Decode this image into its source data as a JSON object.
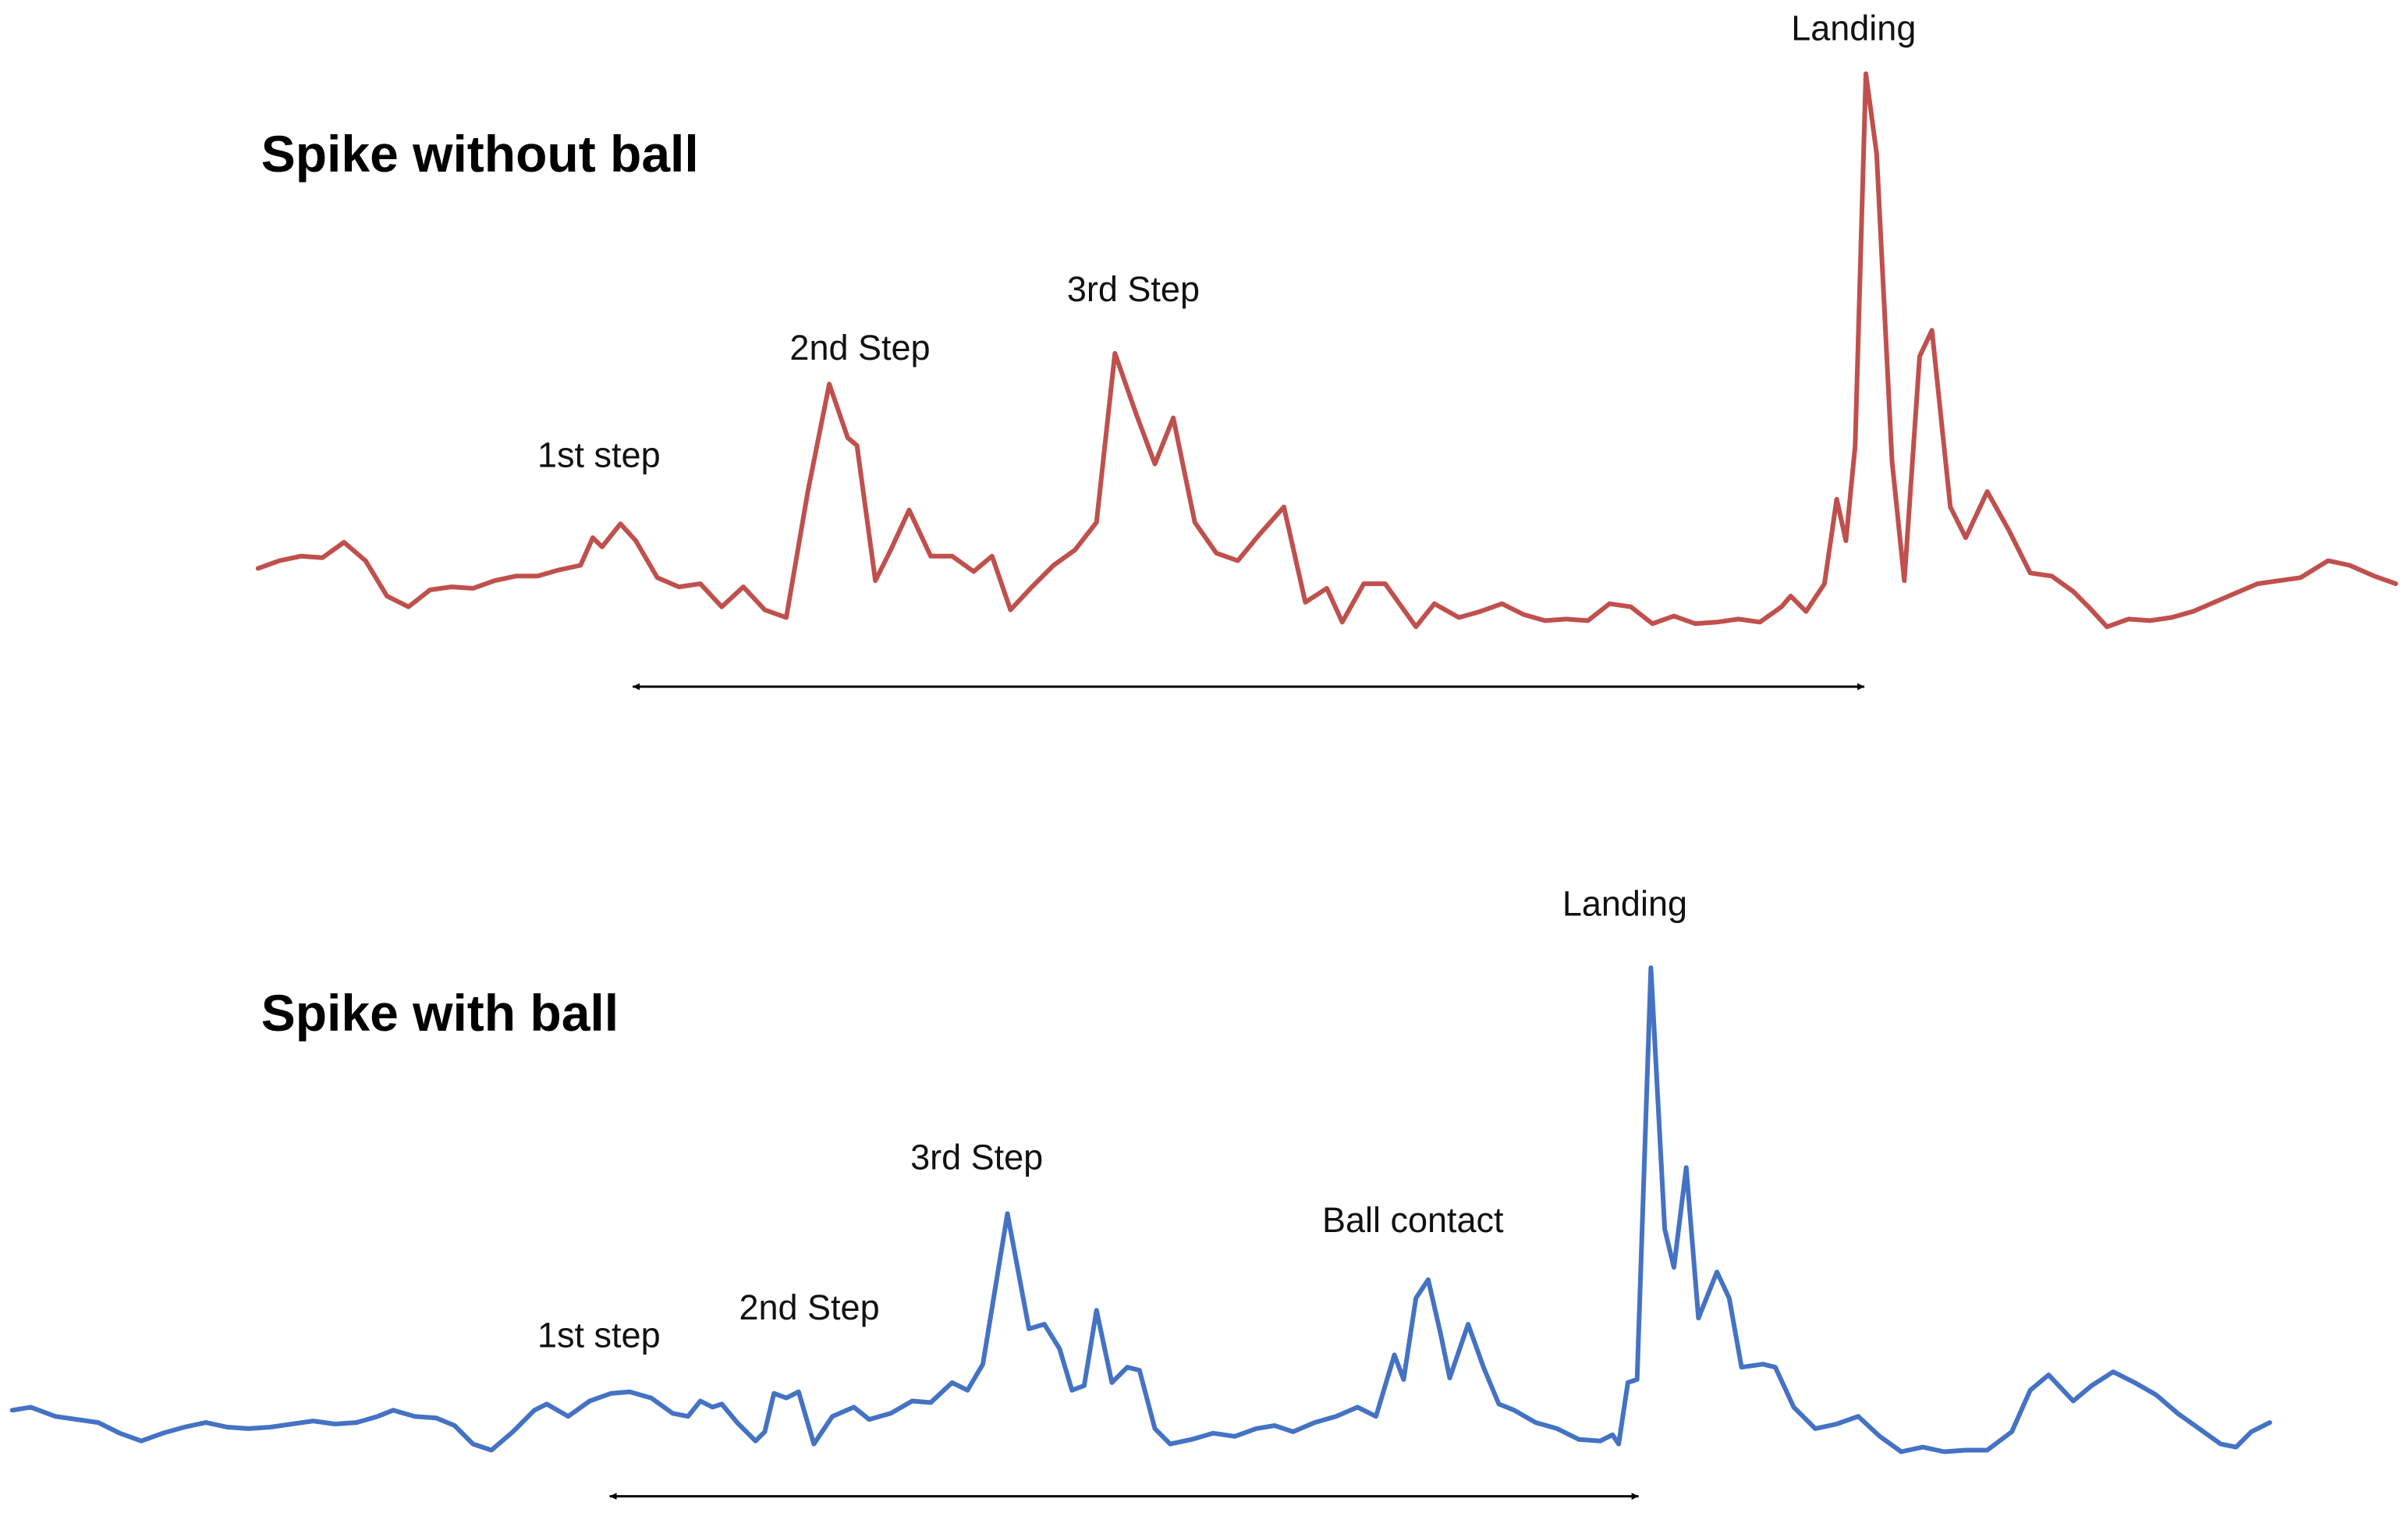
{
  "chart_data": [
    {
      "type": "line",
      "title": "Spike without ball",
      "annotations": [
        "1st step",
        "2nd Step",
        "3rd Step",
        "Landing"
      ],
      "color": "#c0504d",
      "xlim": [
        0,
        1392
      ],
      "ylim": [
        0,
        400
      ],
      "x": [
        0,
        14,
        28,
        42,
        56,
        70,
        84,
        98,
        112,
        126,
        140,
        154,
        168,
        182,
        196,
        210,
        218,
        224,
        236,
        246,
        260,
        274,
        288,
        302,
        316,
        330,
        344,
        358,
        372,
        384,
        390,
        402,
        412,
        424,
        438,
        452,
        466,
        478,
        490,
        504,
        518,
        532,
        546,
        558,
        572,
        584,
        596,
        610,
        624,
        638,
        652,
        668,
        682,
        696,
        706,
        720,
        734,
        754,
        766,
        782,
        796,
        810,
        824,
        838,
        852,
        866,
        880,
        894,
        908,
        922,
        936,
        950,
        964,
        978,
        992,
        998,
        1008,
        1020,
        1028,
        1034,
        1040,
        1047,
        1054,
        1064,
        1072,
        1082,
        1090,
        1102,
        1112,
        1126,
        1140,
        1154,
        1168,
        1182,
        1192,
        1204,
        1218,
        1232,
        1246,
        1260,
        1274,
        1288,
        1302,
        1316,
        1330,
        1348,
        1362,
        1378,
        1392
      ],
      "values": [
        70,
        75,
        78,
        77,
        87,
        75,
        52,
        45,
        56,
        58,
        57,
        62,
        65,
        65,
        69,
        72,
        90,
        84,
        99,
        88,
        64,
        58,
        60,
        45,
        58,
        43,
        38,
        120,
        190,
        155,
        150,
        62,
        82,
        108,
        78,
        78,
        68,
        78,
        43,
        58,
        72,
        82,
        100,
        210,
        170,
        138,
        168,
        100,
        80,
        75,
        92,
        110,
        48,
        57,
        35,
        60,
        60,
        32,
        47,
        38,
        42,
        47,
        40,
        36,
        37,
        36,
        47,
        45,
        34,
        39,
        34,
        35,
        37,
        35,
        45,
        52,
        42,
        60,
        115,
        88,
        150,
        392,
        340,
        140,
        62,
        208,
        225,
        110,
        90,
        120,
        95,
        67,
        65,
        55,
        45,
        32,
        37,
        36,
        38,
        42,
        48,
        54,
        60,
        62,
        64,
        75,
        72,
        65,
        60
      ]
    },
    {
      "type": "line",
      "title": "Spike with ball",
      "annotations": [
        "1st step",
        "2nd Step",
        "3rd Step",
        "Ball contact",
        "Landing"
      ],
      "color": "#4472c4",
      "xlim": [
        0,
        1470
      ],
      "ylim": [
        0,
        400
      ],
      "x": [
        0,
        12,
        28,
        42,
        56,
        70,
        84,
        98,
        112,
        126,
        140,
        154,
        168,
        182,
        196,
        210,
        224,
        238,
        248,
        262,
        276,
        288,
        300,
        312,
        326,
        340,
        348,
        362,
        376,
        390,
        402,
        416,
        430,
        440,
        448,
        456,
        462,
        472,
        484,
        490,
        496,
        504,
        512,
        522,
        534,
        548,
        558,
        572,
        586,
        598,
        612,
        622,
        632,
        648,
        662,
        672,
        682,
        690,
        698,
        706,
        716,
        726,
        734,
        744,
        754,
        768,
        782,
        796,
        810,
        822,
        834,
        848,
        862,
        876,
        888,
        900,
        906,
        914,
        922,
        930,
        936,
        948,
        958,
        968,
        978,
        992,
        1006,
        1020,
        1034,
        1042,
        1046,
        1052,
        1058,
        1067,
        1076,
        1082,
        1090,
        1098,
        1110,
        1118,
        1126,
        1140,
        1148,
        1160,
        1174,
        1188,
        1202,
        1216,
        1230,
        1244,
        1258,
        1272,
        1286,
        1302,
        1314,
        1326,
        1342,
        1354,
        1368,
        1382,
        1396,
        1410,
        1424,
        1438,
        1448,
        1458,
        1470
      ],
      "values": [
        62,
        64,
        58,
        56,
        54,
        47,
        42,
        47,
        51,
        54,
        51,
        50,
        51,
        53,
        55,
        53,
        54,
        58,
        62,
        58,
        57,
        52,
        40,
        36,
        48,
        62,
        66,
        58,
        68,
        73,
        74,
        70,
        60,
        58,
        68,
        64,
        66,
        54,
        42,
        48,
        73,
        70,
        74,
        40,
        58,
        64,
        56,
        60,
        68,
        67,
        80,
        75,
        92,
        190,
        115,
        118,
        102,
        75,
        78,
        127,
        80,
        90,
        88,
        50,
        40,
        43,
        47,
        45,
        50,
        52,
        48,
        54,
        58,
        64,
        58,
        98,
        82,
        135,
        147,
        112,
        83,
        118,
        90,
        66,
        62,
        54,
        50,
        43,
        42,
        46,
        40,
        80,
        82,
        350,
        180,
        155,
        220,
        122,
        152,
        135,
        90,
        92,
        90,
        64,
        50,
        53,
        58,
        45,
        35,
        38,
        35,
        36,
        36,
        48,
        75,
        85,
        68,
        78,
        87,
        80,
        72,
        60,
        50,
        40,
        38,
        48,
        54
      ]
    }
  ]
}
